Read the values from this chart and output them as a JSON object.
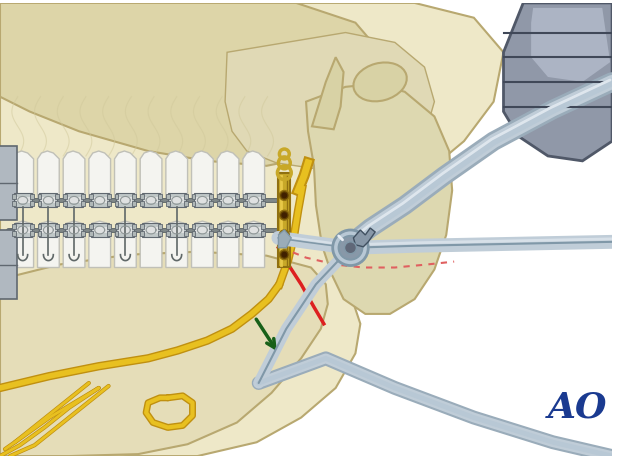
{
  "bg": "#ffffff",
  "bone_light": "#eee8c8",
  "bone_mid": "#ddd5a8",
  "bone_dark": "#c8bc88",
  "bone_outline": "#b8a870",
  "soft_bone": "#e8e0c0",
  "ic": "#c0cdd8",
  "id": "#8098a8",
  "ih": "#e8eef4",
  "plate_gold": "#c8a828",
  "plate_dark": "#907010",
  "plate_highlight": "#e8c848",
  "yn": "#e8c020",
  "yn_dark": "#c09010",
  "rl": "#dd2020",
  "rd": "#e06060",
  "ga": "#186018",
  "tooth": "#f4f4f0",
  "tooth_edge": "#c0c0b8",
  "bk": "#909898",
  "bk_dark": "#606870",
  "wire": "#606868",
  "ao_color": "#1a3a90",
  "ao_text": "AO",
  "figsize": [
    6.2,
    4.59
  ],
  "dpi": 100
}
